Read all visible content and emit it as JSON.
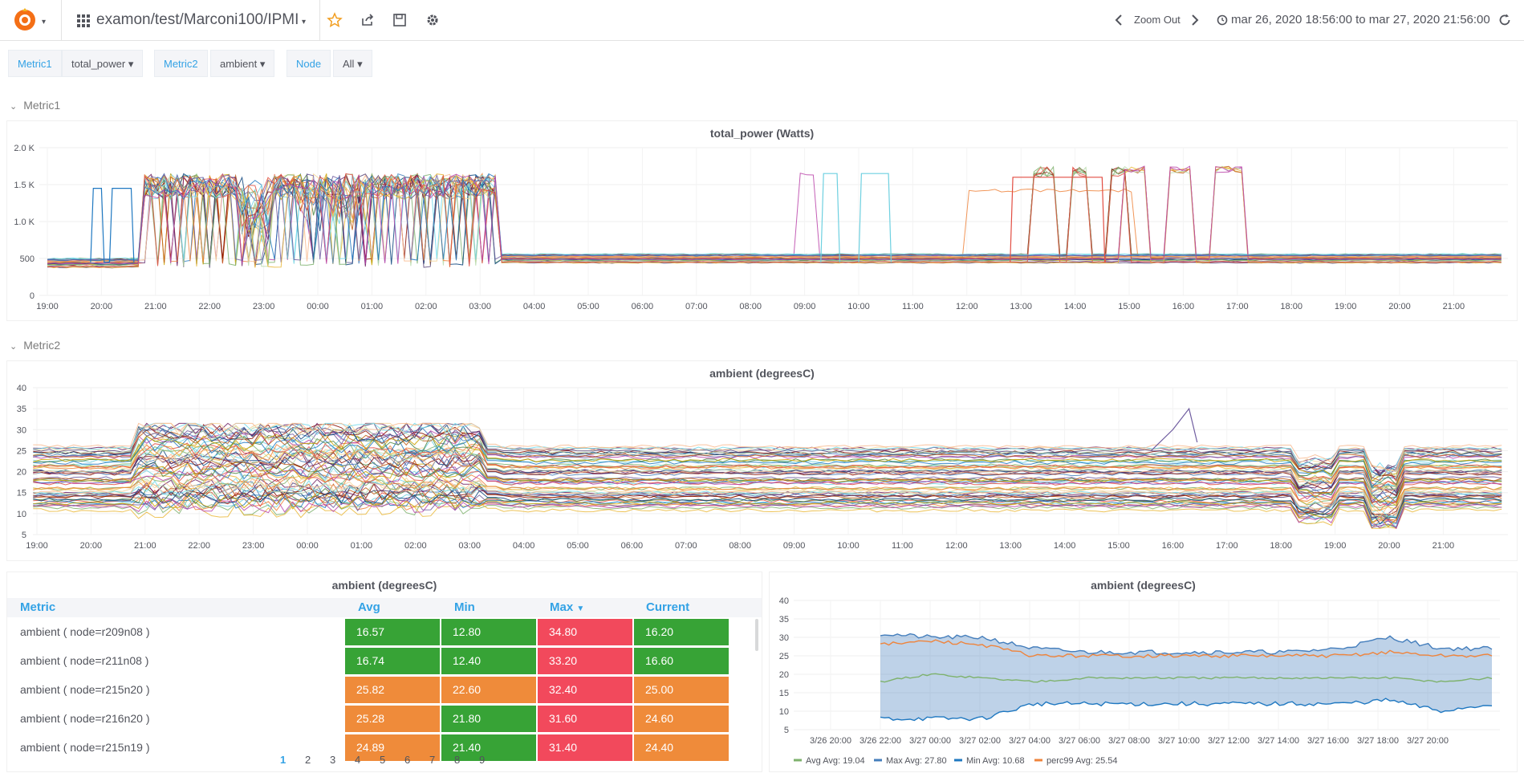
{
  "topbar": {
    "dashboard_title": "examon/test/Marconi100/IPMI",
    "zoom_out_label": "Zoom Out",
    "time_range": "mar 26, 2020 18:56:00 to mar 27, 2020 21:56:00"
  },
  "variables": [
    {
      "label": "Metric1",
      "value": "total_power"
    },
    {
      "label": "Metric2",
      "value": "ambient"
    },
    {
      "label": "Node",
      "value": "All"
    }
  ],
  "rows": {
    "row1": "Metric1",
    "row2": "Metric2"
  },
  "panel1": {
    "title": "total_power (Watts)",
    "y_ticks": [
      "2.0 K",
      "1.5 K",
      "1.0 K",
      "500",
      "0"
    ],
    "x_ticks": [
      "19:00",
      "20:00",
      "21:00",
      "22:00",
      "23:00",
      "00:00",
      "01:00",
      "02:00",
      "03:00",
      "04:00",
      "05:00",
      "06:00",
      "07:00",
      "08:00",
      "09:00",
      "10:00",
      "11:00",
      "12:00",
      "13:00",
      "14:00",
      "15:00",
      "16:00",
      "17:00",
      "18:00",
      "19:00",
      "20:00",
      "21:00"
    ]
  },
  "panel2": {
    "title": "ambient (degreesC)",
    "y_ticks": [
      "40",
      "35",
      "30",
      "25",
      "20",
      "15",
      "10",
      "5"
    ],
    "x_ticks": [
      "19:00",
      "20:00",
      "21:00",
      "22:00",
      "23:00",
      "00:00",
      "01:00",
      "02:00",
      "03:00",
      "04:00",
      "05:00",
      "06:00",
      "07:00",
      "08:00",
      "09:00",
      "10:00",
      "11:00",
      "12:00",
      "13:00",
      "14:00",
      "15:00",
      "16:00",
      "17:00",
      "18:00",
      "19:00",
      "20:00",
      "21:00"
    ]
  },
  "panel3": {
    "title": "ambient (degreesC)",
    "columns": [
      "Metric",
      "Avg",
      "Min",
      "Max",
      "Current"
    ],
    "rows": [
      {
        "metric": "ambient ( node=r209n08 )",
        "avg": "16.57",
        "min": "12.80",
        "max": "34.80",
        "current": "16.20"
      },
      {
        "metric": "ambient ( node=r211n08 )",
        "avg": "16.74",
        "min": "12.40",
        "max": "33.20",
        "current": "16.60"
      },
      {
        "metric": "ambient ( node=r215n20 )",
        "avg": "25.82",
        "min": "22.60",
        "max": "32.40",
        "current": "25.00"
      },
      {
        "metric": "ambient ( node=r216n20 )",
        "avg": "25.28",
        "min": "21.80",
        "max": "31.60",
        "current": "24.60"
      },
      {
        "metric": "ambient ( node=r215n19 )",
        "avg": "24.89",
        "min": "21.40",
        "max": "31.40",
        "current": "24.40"
      }
    ],
    "pages": [
      "1",
      "2",
      "3",
      "4",
      "5",
      "6",
      "7",
      "8",
      "9"
    ],
    "colors": {
      "green": "#37a336",
      "orange": "#ef8b3a",
      "red": "#f2495c"
    }
  },
  "panel4": {
    "title": "ambient (degreesC)",
    "y_ticks": [
      "40",
      "35",
      "30",
      "25",
      "20",
      "15",
      "10",
      "5"
    ],
    "x_ticks": [
      "3/26 20:00",
      "3/26 22:00",
      "3/27 00:00",
      "3/27 02:00",
      "3/27 04:00",
      "3/27 06:00",
      "3/27 08:00",
      "3/27 10:00",
      "3/27 12:00",
      "3/27 14:00",
      "3/27 16:00",
      "3/27 18:00",
      "3/27 20:00"
    ],
    "legend": [
      {
        "name": "Avg",
        "stat": "Avg: 19.04",
        "color": "#7eb26d"
      },
      {
        "name": "Max",
        "stat": "Avg: 27.80",
        "color": "#447ebc"
      },
      {
        "name": "Min",
        "stat": "Avg: 10.68",
        "color": "#1f78c1"
      },
      {
        "name": "perc99",
        "stat": "Avg: 25.54",
        "color": "#ef843c"
      }
    ]
  },
  "chart_data": [
    {
      "type": "line",
      "title": "total_power (Watts)",
      "x_range": [
        "19:00",
        "21:56"
      ],
      "ylim": [
        0,
        2000
      ],
      "description_series": "many node series",
      "baseline": 450
    },
    {
      "type": "line",
      "title": "ambient (degreesC)",
      "ylim": [
        5,
        40
      ]
    },
    {
      "type": "area",
      "title": "ambient (degreesC)",
      "ylim": [
        5,
        40
      ],
      "series": [
        {
          "name": "Avg",
          "values": [
            18,
            20,
            19,
            18,
            19,
            19,
            19,
            19,
            19,
            19,
            19,
            18,
            19
          ]
        },
        {
          "name": "Max",
          "values": [
            31,
            30,
            30,
            27,
            26,
            26,
            26,
            26,
            26,
            27,
            30,
            27,
            27
          ]
        },
        {
          "name": "Min",
          "values": [
            8,
            8,
            8,
            12,
            12,
            12,
            12,
            12,
            12,
            12,
            13,
            10,
            12
          ]
        },
        {
          "name": "perc99",
          "values": [
            28,
            29,
            28,
            25,
            25,
            25,
            25,
            25,
            25,
            25,
            26,
            25,
            25
          ]
        }
      ]
    }
  ]
}
